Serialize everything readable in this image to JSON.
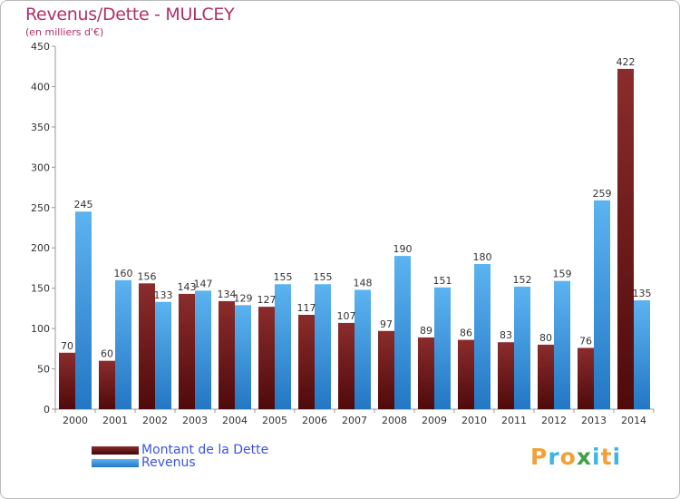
{
  "title": "Revenus/Dette - MULCEY",
  "subtitle": "(en milliers d'€)",
  "logo": {
    "letters": [
      "P",
      "r",
      "o",
      "x",
      "i",
      "t",
      "i"
    ],
    "colors": [
      "#f2a13a",
      "#3fb4e6",
      "#f2a13a",
      "#43a047",
      "#3fb4e6",
      "#f2a13a",
      "#3fb4e6"
    ]
  },
  "chart_data": {
    "type": "bar",
    "categories": [
      "2000",
      "2001",
      "2002",
      "2003",
      "2004",
      "2005",
      "2006",
      "2007",
      "2008",
      "2009",
      "2010",
      "2011",
      "2012",
      "2013",
      "2014"
    ],
    "series": [
      {
        "name": "Montant de la Dette",
        "color": "#7a1c1c",
        "values": [
          70,
          60,
          156,
          143,
          134,
          127,
          117,
          107,
          97,
          89,
          86,
          83,
          80,
          76,
          422
        ]
      },
      {
        "name": "Revenus",
        "color": "#3d9de6",
        "values": [
          245,
          160,
          133,
          147,
          129,
          155,
          155,
          148,
          190,
          151,
          180,
          152,
          159,
          259,
          135
        ]
      }
    ],
    "ylim": [
      0,
      450
    ],
    "yticks": [
      0,
      50,
      100,
      150,
      200,
      250,
      300,
      350,
      400,
      450
    ],
    "grid": false,
    "legend": "bottom-left"
  }
}
